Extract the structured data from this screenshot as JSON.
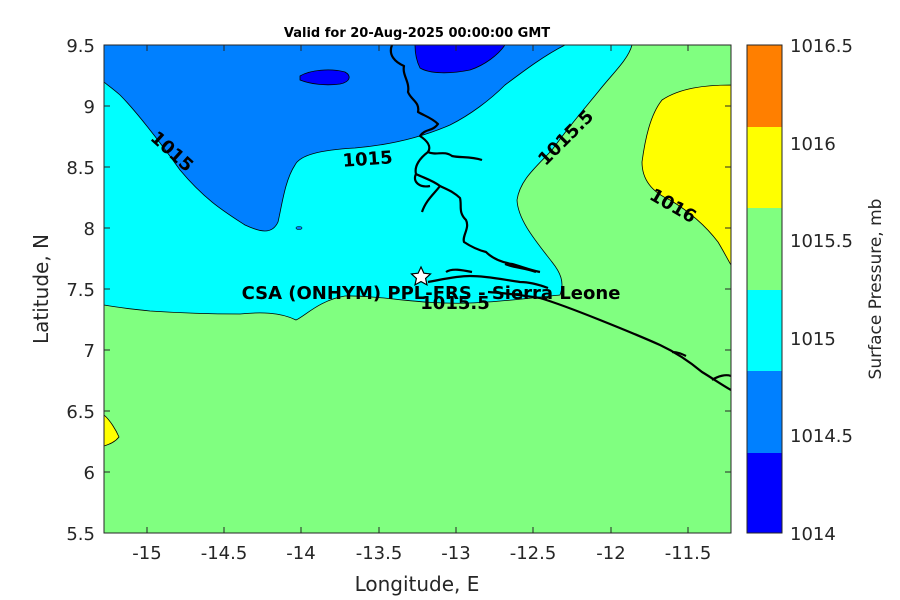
{
  "title": "Valid for 20-Aug-2025 00:00:00 GMT",
  "xlabel": "Longitude, E",
  "ylabel": "Latitude, N",
  "x_ticks": [
    "-15",
    "-14.5",
    "-14",
    "-13.5",
    "-13",
    "-12.5",
    "-12",
    "-11.5"
  ],
  "y_ticks": [
    "9.5",
    "9",
    "8.5",
    "8",
    "7.5",
    "7",
    "6.5",
    "6",
    "5.5"
  ],
  "xlim": [
    -15.27,
    -11.23
  ],
  "ylim": [
    5.5,
    9.5
  ],
  "station": {
    "label": "CSA (ONHYM) PPL-FRS - Sierra Leone",
    "lon": -13.23,
    "lat": 7.59
  },
  "contour_labels": [
    {
      "text": "1015"
    },
    {
      "text": "1015"
    },
    {
      "text": "1015.5"
    },
    {
      "text": "1016"
    },
    {
      "text": "1015.5"
    }
  ],
  "colorbar": {
    "label": "Surface Pressure, mb",
    "ticks": [
      "1016.5",
      "1016",
      "1015.5",
      "1015",
      "1014.5",
      "1014"
    ],
    "colors": [
      "#ff7f00",
      "#ffff00",
      "#80ff80",
      "#00ffff",
      "#0080ff",
      "#0000ff"
    ]
  },
  "chart_data": {
    "type": "heatmap",
    "title": "Valid for 20-Aug-2025 00:00:00 GMT",
    "xlabel": "Longitude, E",
    "ylabel": "Latitude, N",
    "xlim": [
      -15.27,
      -11.23
    ],
    "ylim": [
      5.5,
      9.5
    ],
    "levels": [
      1014,
      1014.5,
      1015,
      1015.5,
      1016,
      1016.5
    ],
    "contour_values_labeled": [
      1015,
      1015,
      1015.5,
      1016,
      1015.5
    ],
    "colorbar_label": "Surface Pressure, mb"
  }
}
